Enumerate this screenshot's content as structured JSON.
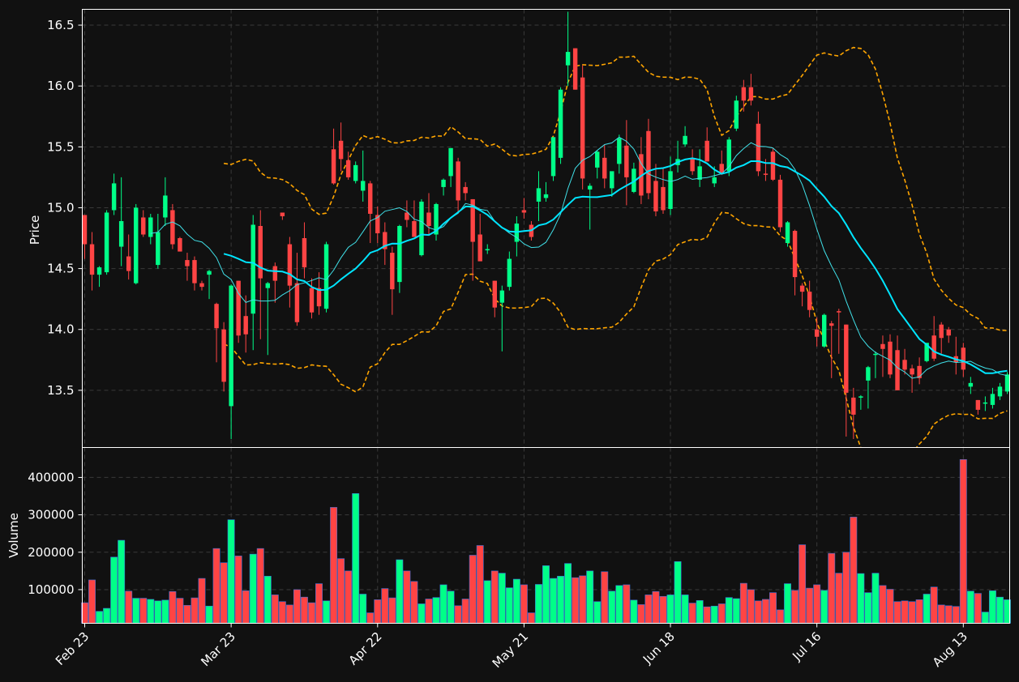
{
  "chart_data": {
    "type": "candlestick",
    "price_panel": {
      "ylabel": "Price",
      "ylim": [
        13.03,
        16.63
      ],
      "yticks": [
        13.5,
        14.0,
        14.5,
        15.0,
        15.5,
        16.0,
        16.5
      ],
      "ytick_labels": [
        "13.5",
        "14.0",
        "14.5",
        "15.0",
        "15.5",
        "16.0",
        "16.5"
      ],
      "grid": true,
      "series": [
        {
          "kind": "candles",
          "up_color": "#00ff88",
          "down_color": "#ff4444"
        },
        {
          "kind": "line",
          "color": "#00e5ff",
          "style": "thick-solid"
        },
        {
          "kind": "line",
          "color": "#40e0e8",
          "style": "thin-solid"
        },
        {
          "kind": "band",
          "color": "#ffa500",
          "style": "dashed"
        }
      ]
    },
    "volume_panel": {
      "ylabel": "Volume",
      "ylim": [
        10000,
        480000
      ],
      "yticks": [
        100000,
        200000,
        300000,
        400000
      ],
      "ytick_labels": [
        "100000",
        "200000",
        "300000",
        "400000"
      ],
      "grid": true
    },
    "x_axis": {
      "tick_labels": [
        "Feb 23",
        "Mar 23",
        "Apr 22",
        "May 21",
        "Jun 18",
        "Jul 16",
        "Aug 13"
      ],
      "tick_index": [
        0,
        20,
        40,
        60,
        80,
        100,
        120
      ],
      "count": 127
    },
    "ohlc": [
      [
        14.94,
        14.94,
        14.58,
        14.7
      ],
      [
        14.7,
        14.8,
        14.32,
        14.45
      ],
      [
        14.45,
        14.52,
        14.35,
        14.51
      ],
      [
        14.47,
        14.98,
        14.45,
        14.96
      ],
      [
        14.98,
        15.28,
        14.94,
        15.2
      ],
      [
        14.68,
        15.25,
        14.52,
        14.89
      ],
      [
        14.6,
        14.78,
        14.41,
        14.48
      ],
      [
        14.38,
        15.03,
        14.37,
        15.0
      ],
      [
        14.92,
        14.98,
        14.76,
        14.78
      ],
      [
        14.76,
        14.95,
        14.7,
        14.92
      ],
      [
        14.53,
        14.95,
        14.5,
        14.8
      ],
      [
        14.92,
        15.25,
        14.85,
        15.1
      ],
      [
        14.98,
        15.03,
        14.66,
        14.7
      ],
      [
        14.75,
        14.76,
        14.64,
        14.64
      ],
      [
        14.57,
        14.63,
        14.4,
        14.52
      ],
      [
        14.57,
        14.6,
        14.32,
        14.38
      ],
      [
        14.38,
        14.4,
        14.32,
        14.35
      ],
      [
        14.45,
        14.49,
        14.25,
        14.48
      ],
      [
        14.21,
        14.22,
        13.73,
        14.01
      ],
      [
        14.0,
        14.06,
        13.49,
        13.57
      ],
      [
        13.37,
        14.37,
        13.1,
        14.36
      ],
      [
        14.4,
        14.4,
        13.89,
        13.95
      ],
      [
        14.11,
        14.28,
        13.81,
        13.96
      ],
      [
        14.13,
        14.94,
        13.83,
        14.86
      ],
      [
        14.85,
        14.98,
        13.92,
        14.42
      ],
      [
        14.34,
        14.39,
        13.79,
        14.38
      ],
      [
        14.52,
        14.55,
        14.22,
        14.4
      ],
      [
        14.96,
        14.95,
        14.9,
        14.93
      ],
      [
        14.7,
        14.76,
        14.18,
        14.36
      ],
      [
        14.38,
        14.63,
        14.03,
        14.06
      ],
      [
        14.75,
        14.88,
        14.42,
        14.51
      ],
      [
        14.34,
        14.42,
        14.09,
        14.14
      ],
      [
        14.34,
        14.47,
        14.12,
        14.19
      ],
      [
        14.17,
        14.72,
        14.14,
        14.7
      ],
      [
        15.48,
        15.65,
        15.19,
        15.2
      ],
      [
        15.55,
        15.7,
        15.3,
        15.4
      ],
      [
        15.39,
        15.46,
        15.23,
        15.25
      ],
      [
        15.22,
        15.38,
        15.2,
        15.35
      ],
      [
        15.14,
        15.47,
        15.05,
        15.22
      ],
      [
        15.2,
        15.22,
        14.71,
        14.95
      ],
      [
        14.94,
        15.01,
        14.71,
        14.79
      ],
      [
        14.8,
        14.88,
        14.53,
        14.66
      ],
      [
        14.63,
        14.68,
        14.12,
        14.33
      ],
      [
        14.39,
        14.86,
        14.3,
        14.85
      ],
      [
        14.96,
        15.06,
        14.84,
        14.9
      ],
      [
        14.89,
        15.06,
        14.76,
        14.76
      ],
      [
        14.61,
        15.07,
        14.6,
        15.05
      ],
      [
        14.96,
        15.12,
        14.77,
        14.85
      ],
      [
        14.78,
        15.04,
        14.73,
        15.03
      ],
      [
        15.17,
        15.24,
        15.1,
        15.23
      ],
      [
        15.26,
        15.49,
        15.17,
        15.49
      ],
      [
        15.38,
        15.41,
        14.96,
        15.06
      ],
      [
        15.17,
        15.21,
        15.06,
        15.12
      ],
      [
        15.07,
        15.07,
        14.4,
        14.72
      ],
      [
        14.78,
        14.95,
        14.58,
        14.56
      ],
      [
        14.65,
        14.7,
        14.62,
        14.66
      ],
      [
        14.4,
        14.4,
        14.1,
        14.18
      ],
      [
        14.22,
        14.36,
        13.82,
        14.32
      ],
      [
        14.35,
        14.64,
        14.32,
        14.58
      ],
      [
        14.72,
        14.93,
        14.6,
        14.87
      ],
      [
        14.98,
        15.08,
        14.91,
        14.96
      ],
      [
        14.86,
        14.89,
        14.73,
        14.76
      ],
      [
        15.05,
        15.3,
        14.89,
        15.16
      ],
      [
        15.08,
        15.21,
        15.05,
        15.11
      ],
      [
        15.26,
        15.57,
        15.22,
        15.58
      ],
      [
        15.41,
        15.99,
        15.36,
        15.97
      ],
      [
        16.17,
        16.61,
        16.0,
        16.28
      ],
      [
        16.31,
        16.31,
        15.97,
        15.97
      ],
      [
        16.07,
        16.17,
        15.15,
        15.24
      ],
      [
        15.15,
        15.2,
        14.82,
        15.18
      ],
      [
        15.33,
        15.47,
        15.24,
        15.46
      ],
      [
        15.41,
        15.52,
        15.16,
        15.24
      ],
      [
        15.16,
        15.28,
        15.09,
        15.3
      ],
      [
        15.36,
        15.6,
        15.28,
        15.57
      ],
      [
        15.51,
        15.72,
        15.02,
        15.25
      ],
      [
        15.13,
        15.37,
        15.12,
        15.32
      ],
      [
        15.44,
        15.58,
        15.03,
        15.1
      ],
      [
        15.63,
        15.73,
        15.07,
        15.12
      ],
      [
        15.22,
        15.36,
        14.93,
        14.97
      ],
      [
        15.17,
        15.32,
        14.95,
        14.98
      ],
      [
        14.99,
        15.42,
        14.94,
        15.3
      ],
      [
        15.35,
        15.55,
        15.29,
        15.4
      ],
      [
        15.52,
        15.67,
        15.5,
        15.59
      ],
      [
        15.4,
        15.48,
        15.27,
        15.3
      ],
      [
        15.23,
        15.48,
        15.17,
        15.34
      ],
      [
        15.55,
        15.66,
        15.38,
        15.38
      ],
      [
        15.2,
        15.34,
        15.17,
        15.25
      ],
      [
        15.36,
        15.47,
        15.27,
        15.28
      ],
      [
        15.3,
        15.58,
        15.26,
        15.56
      ],
      [
        15.65,
        15.92,
        15.63,
        15.88
      ],
      [
        15.99,
        16.05,
        15.79,
        15.88
      ],
      [
        15.99,
        16.1,
        15.84,
        15.88
      ],
      [
        15.69,
        15.79,
        15.26,
        15.3
      ],
      [
        15.28,
        15.4,
        15.22,
        15.27
      ],
      [
        15.46,
        15.49,
        15.22,
        15.23
      ],
      [
        15.23,
        15.27,
        14.8,
        14.84
      ],
      [
        14.71,
        14.89,
        14.68,
        14.88
      ],
      [
        14.81,
        14.82,
        14.28,
        14.43
      ],
      [
        14.36,
        14.38,
        14.19,
        14.31
      ],
      [
        14.31,
        14.4,
        14.1,
        14.16
      ],
      [
        14.0,
        14.1,
        13.86,
        13.94
      ],
      [
        13.86,
        14.13,
        13.85,
        14.12
      ],
      [
        14.05,
        14.07,
        13.6,
        14.03
      ],
      [
        14.15,
        14.17,
        13.8,
        14.14
      ],
      [
        14.04,
        14.04,
        13.12,
        13.48
      ],
      [
        13.44,
        13.52,
        13.1,
        13.3
      ],
      [
        13.44,
        13.46,
        13.34,
        13.45
      ],
      [
        13.58,
        13.7,
        13.35,
        13.69
      ],
      [
        13.79,
        13.82,
        13.6,
        13.8
      ],
      [
        13.88,
        13.95,
        13.61,
        13.84
      ],
      [
        13.9,
        13.96,
        13.6,
        13.63
      ],
      [
        13.83,
        13.95,
        13.5,
        13.5
      ],
      [
        13.75,
        13.84,
        13.63,
        13.67
      ],
      [
        13.68,
        13.71,
        13.48,
        13.63
      ],
      [
        13.7,
        13.77,
        13.55,
        13.6
      ],
      [
        13.74,
        13.86,
        13.73,
        13.89
      ],
      [
        13.95,
        14.11,
        13.74,
        13.76
      ],
      [
        14.04,
        14.06,
        13.8,
        13.93
      ],
      [
        14.0,
        14.02,
        13.89,
        13.95
      ],
      [
        13.78,
        13.94,
        13.63,
        13.73
      ],
      [
        13.85,
        13.89,
        13.61,
        13.67
      ],
      [
        13.53,
        13.61,
        13.47,
        13.56
      ],
      [
        13.42,
        13.42,
        13.3,
        13.34
      ],
      [
        13.39,
        13.45,
        13.33,
        13.4
      ],
      [
        13.38,
        13.52,
        13.35,
        13.47
      ],
      [
        13.45,
        13.56,
        13.42,
        13.53
      ],
      [
        13.49,
        13.65,
        13.47,
        13.63
      ]
    ],
    "volume": [
      65000,
      126000,
      42000,
      50000,
      187000,
      232000,
      96000,
      77000,
      77000,
      74000,
      70000,
      72000,
      95000,
      77000,
      58000,
      78000,
      130000,
      56000,
      210000,
      172000,
      287000,
      190000,
      97000,
      195000,
      210000,
      136000,
      86000,
      68000,
      59000,
      100000,
      80000,
      65000,
      116000,
      70000,
      320000,
      183000,
      150000,
      357000,
      88000,
      38000,
      73000,
      103000,
      78000,
      180000,
      150000,
      122000,
      62000,
      75000,
      79000,
      113000,
      96000,
      57000,
      75000,
      192000,
      218000,
      124000,
      150000,
      144000,
      105000,
      128000,
      113000,
      38000,
      114000,
      164000,
      130000,
      136000,
      170000,
      132000,
      137000,
      150000,
      68000,
      148000,
      96000,
      111000,
      113000,
      72000,
      60000,
      86000,
      95000,
      82000,
      86000,
      175000,
      86000,
      64000,
      71000,
      54000,
      56000,
      62000,
      79000,
      76000,
      117000,
      100000,
      70000,
      74000,
      92000,
      46000,
      116000,
      98000,
      220000,
      104000,
      113000,
      98000,
      197000,
      144000,
      200000,
      294000,
      143000,
      92000,
      144000,
      111000,
      101000,
      68000,
      70000,
      68000,
      73000,
      88000,
      107000,
      59000,
      57000,
      55000,
      448000,
      96000,
      90000,
      40000,
      97000,
      80000,
      73000
    ]
  }
}
